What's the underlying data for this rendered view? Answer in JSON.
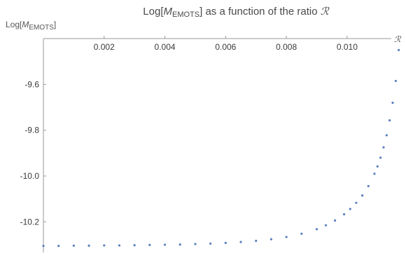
{
  "chart_data": {
    "type": "scatter",
    "title": "Log[M_EMOTS] as a function of the ratio ℛ",
    "title_parts": {
      "prefix": "Log[",
      "var": "M",
      "sub": "EMOTS",
      "suffix": "] as a function of the ratio ",
      "symbol": "ℛ"
    },
    "xlabel": "ℛ",
    "ylabel_parts": {
      "prefix": "Log[",
      "var": "M",
      "sub": "EMOTS",
      "suffix": "]"
    },
    "xlim": [
      0,
      0.0118
    ],
    "ylim": [
      -10.34,
      -9.4
    ],
    "x_axis_position": "top",
    "x_ticks": [
      0.002,
      0.004,
      0.006,
      0.008,
      0.01
    ],
    "x_tick_labels": [
      "0.002",
      "0.004",
      "0.006",
      "0.008",
      "0.010"
    ],
    "y_ticks": [
      -9.6,
      -9.8,
      -10.0,
      -10.2
    ],
    "y_tick_labels": [
      "-9.6",
      "-9.8",
      "-10.0",
      "-10.2"
    ],
    "grid": false,
    "marker_color": "#5B7FBF",
    "series": [
      {
        "x": [
          0.0,
          0.0005,
          0.001,
          0.0015,
          0.002,
          0.0025,
          0.003,
          0.0035,
          0.004,
          0.0045,
          0.005,
          0.0055,
          0.006,
          0.0065,
          0.007,
          0.0075,
          0.008,
          0.0085,
          0.009,
          0.0093,
          0.0096,
          0.0099,
          0.0101,
          0.0103,
          0.0105,
          0.0107,
          0.0109,
          0.011,
          0.0111,
          0.0112,
          0.0113,
          0.0114,
          0.0115,
          0.0116,
          0.0117
        ],
        "y": [
          -10.305,
          -10.305,
          -10.304,
          -10.304,
          -10.303,
          -10.303,
          -10.302,
          -10.301,
          -10.3,
          -10.299,
          -10.297,
          -10.295,
          -10.292,
          -10.288,
          -10.283,
          -10.276,
          -10.266,
          -10.252,
          -10.232,
          -10.215,
          -10.194,
          -10.167,
          -10.144,
          -10.117,
          -10.085,
          -10.044,
          -9.99,
          -9.958,
          -9.92,
          -9.875,
          -9.822,
          -9.757,
          -9.68,
          -9.585,
          -9.45
        ]
      }
    ]
  }
}
